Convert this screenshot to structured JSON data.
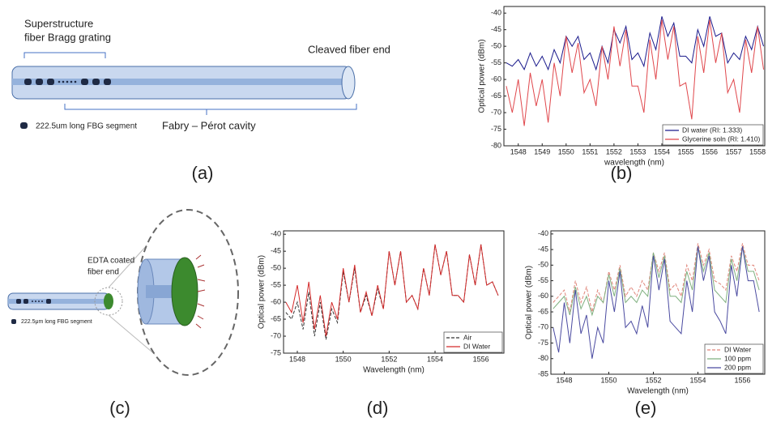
{
  "panel_labels": [
    "(a)",
    "(b)",
    "(c)",
    "(d)",
    "(e)"
  ],
  "diagrams": {
    "a": {
      "grating_label": [
        "Superstructure",
        "fiber Bragg grating"
      ],
      "end_label": "Cleaved fiber end",
      "segment_legend": "222.5um long FBG segment",
      "cavity_label": "Fabry – Pérot cavity"
    },
    "c": {
      "coating_label": [
        "EDTA coated",
        "fiber end"
      ],
      "segment_legend": "222.5μm long FBG segment"
    }
  },
  "chart_data": [
    {
      "type": "line",
      "xlabel": "wavelength (nm)",
      "ylabel": "Optical power (dBm)",
      "xlim": [
        1547.4,
        1558.3
      ],
      "xticks": [
        1548,
        1549,
        1550,
        1551,
        1552,
        1553,
        1554,
        1555,
        1556,
        1557,
        1558
      ],
      "ylim": [
        -80,
        -38
      ],
      "yticks": [
        -80,
        -75,
        -70,
        -65,
        -60,
        -55,
        -50,
        -45,
        -40
      ],
      "legend": "lower right",
      "x": [
        1547.5,
        1547.75,
        1548,
        1548.25,
        1548.5,
        1548.75,
        1549,
        1549.25,
        1549.5,
        1549.75,
        1550,
        1550.25,
        1550.5,
        1550.75,
        1551,
        1551.25,
        1551.5,
        1551.75,
        1552,
        1552.25,
        1552.5,
        1552.75,
        1553,
        1553.25,
        1553.5,
        1553.75,
        1554,
        1554.25,
        1554.5,
        1554.75,
        1555,
        1555.25,
        1555.5,
        1555.75,
        1556,
        1556.25,
        1556.5,
        1556.75,
        1557,
        1557.25,
        1557.5,
        1557.75,
        1558,
        1558.25
      ],
      "series": [
        {
          "name": "DI water (RI: 1.333)",
          "color": "#1a1a8c",
          "line_style": "solid",
          "values": [
            -55,
            -56,
            -54,
            -57,
            -52,
            -56,
            -53,
            -57,
            -51,
            -55,
            -47,
            -50,
            -47,
            -54,
            -52,
            -57,
            -50,
            -55,
            -45,
            -49,
            -44,
            -54,
            -52,
            -56,
            -46,
            -51,
            -41,
            -47,
            -43,
            -53,
            -53,
            -55,
            -45,
            -50,
            -41,
            -47,
            -46,
            -55,
            -52,
            -54,
            -47,
            -51,
            -44,
            -50
          ]
        },
        {
          "name": "Glycerine soln (RI: 1.410)",
          "color": "#e0474c",
          "line_style": "solid",
          "values": [
            -62,
            -70,
            -60,
            -74,
            -58,
            -68,
            -60,
            -73,
            -55,
            -65,
            -47,
            -58,
            -49,
            -64,
            -60,
            -68,
            -50,
            -60,
            -44,
            -56,
            -45,
            -62,
            -62,
            -70,
            -48,
            -60,
            -42,
            -54,
            -44,
            -62,
            -61,
            -72,
            -47,
            -58,
            -42,
            -55,
            -46,
            -64,
            -60,
            -70,
            -48,
            -58,
            -44,
            -57
          ]
        }
      ]
    },
    {
      "type": "line",
      "xlabel": "Wavelength (nm)",
      "ylabel": "Optical power (dBm)",
      "xlim": [
        1547.4,
        1557
      ],
      "xticks": [
        1548,
        1550,
        1552,
        1554,
        1556
      ],
      "ylim": [
        -75,
        -39
      ],
      "yticks": [
        -75,
        -70,
        -65,
        -60,
        -55,
        -50,
        -45,
        -40
      ],
      "legend": "lower right",
      "x": [
        1547.5,
        1547.75,
        1548,
        1548.25,
        1548.5,
        1548.75,
        1549,
        1549.25,
        1549.5,
        1549.75,
        1550,
        1550.25,
        1550.5,
        1550.75,
        1551,
        1551.25,
        1551.5,
        1551.75,
        1552,
        1552.25,
        1552.5,
        1552.75,
        1553,
        1553.25,
        1553.5,
        1553.75,
        1554,
        1554.25,
        1554.5,
        1554.75,
        1555,
        1555.25,
        1555.5,
        1555.75,
        1556,
        1556.25,
        1556.5,
        1556.75
      ],
      "series": [
        {
          "name": "Air",
          "color": "#333333",
          "line_style": "dashed",
          "values": [
            -63,
            -65,
            -60,
            -68,
            -57,
            -70,
            -60,
            -71,
            -62,
            -66,
            -51,
            -60,
            -50,
            -63,
            -58,
            -64,
            -56,
            -62,
            -45,
            -55,
            -45,
            -60,
            -58,
            -62,
            -50,
            -58,
            -43,
            -52,
            -45,
            -58,
            -58,
            -60,
            -46,
            -55,
            -43,
            -55,
            -54,
            -58
          ]
        },
        {
          "name": "DI Water",
          "color": "#d42b2b",
          "line_style": "solid",
          "values": [
            -60,
            -63,
            -55,
            -66,
            -54,
            -68,
            -58,
            -70,
            -60,
            -65,
            -50,
            -60,
            -49,
            -63,
            -57,
            -64,
            -55,
            -62,
            -45,
            -55,
            -45,
            -60,
            -58,
            -62,
            -50,
            -58,
            -43,
            -52,
            -45,
            -58,
            -58,
            -60,
            -46,
            -55,
            -43,
            -55,
            -54,
            -58
          ]
        }
      ]
    },
    {
      "type": "line",
      "xlabel": "Wavelength (nm)",
      "ylabel": "Optical power (dBm)",
      "xlim": [
        1547.4,
        1557
      ],
      "xticks": [
        1548,
        1550,
        1552,
        1554,
        1556
      ],
      "ylim": [
        -85,
        -39
      ],
      "yticks": [
        -85,
        -80,
        -75,
        -70,
        -65,
        -60,
        -55,
        -50,
        -45,
        -40
      ],
      "legend": "lower right",
      "x": [
        1547.5,
        1547.75,
        1548,
        1548.25,
        1548.5,
        1548.75,
        1549,
        1549.25,
        1549.5,
        1549.75,
        1550,
        1550.25,
        1550.5,
        1550.75,
        1551,
        1551.25,
        1551.5,
        1551.75,
        1552,
        1552.25,
        1552.5,
        1552.75,
        1553,
        1553.25,
        1553.5,
        1553.75,
        1554,
        1554.25,
        1554.5,
        1554.75,
        1555,
        1555.25,
        1555.5,
        1555.75,
        1556,
        1556.25,
        1556.5,
        1556.75
      ],
      "series": [
        {
          "name": "DI Water",
          "color": "#e0857a",
          "line_style": "dashed",
          "values": [
            -62,
            -60,
            -58,
            -65,
            -55,
            -62,
            -57,
            -65,
            -58,
            -62,
            -52,
            -58,
            -50,
            -60,
            -57,
            -60,
            -55,
            -58,
            -46,
            -52,
            -46,
            -58,
            -56,
            -60,
            -50,
            -55,
            -43,
            -50,
            -45,
            -55,
            -56,
            -58,
            -47,
            -52,
            -43,
            -50,
            -50,
            -55
          ]
        },
        {
          "name": "100 ppm",
          "color": "#7fb07f",
          "line_style": "solid",
          "values": [
            -64,
            -62,
            -60,
            -66,
            -57,
            -64,
            -60,
            -66,
            -60,
            -62,
            -53,
            -60,
            -51,
            -62,
            -60,
            -62,
            -58,
            -60,
            -46,
            -54,
            -47,
            -60,
            -60,
            -62,
            -52,
            -58,
            -44,
            -52,
            -46,
            -58,
            -60,
            -62,
            -48,
            -55,
            -44,
            -52,
            -52,
            -58
          ]
        },
        {
          "name": "200 ppm",
          "color": "#4a4aa0",
          "line_style": "solid",
          "values": [
            -70,
            -78,
            -62,
            -75,
            -58,
            -72,
            -66,
            -80,
            -70,
            -75,
            -55,
            -65,
            -52,
            -70,
            -68,
            -72,
            -63,
            -70,
            -47,
            -58,
            -48,
            -68,
            -70,
            -72,
            -55,
            -65,
            -44,
            -55,
            -47,
            -65,
            -68,
            -72,
            -50,
            -60,
            -44,
            -55,
            -55,
            -65
          ]
        }
      ]
    }
  ]
}
